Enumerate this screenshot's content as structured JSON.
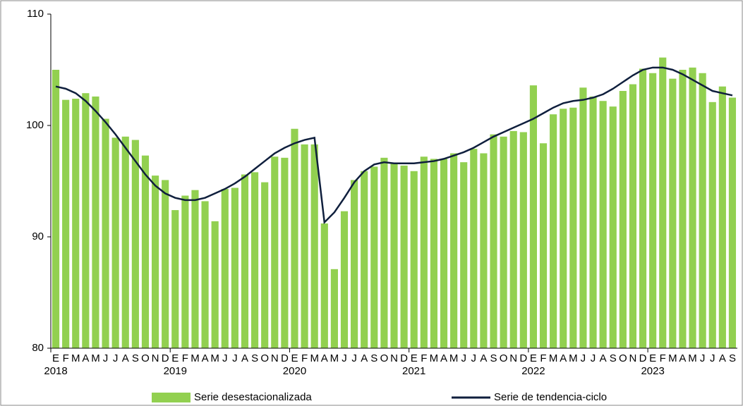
{
  "chart_data": {
    "type": "bar_line",
    "categories": [
      "E",
      "F",
      "M",
      "A",
      "M",
      "J",
      "J",
      "A",
      "S",
      "O",
      "N",
      "D",
      "E",
      "F",
      "M",
      "A",
      "M",
      "J",
      "J",
      "A",
      "S",
      "O",
      "N",
      "D",
      "E",
      "F",
      "M",
      "A",
      "M",
      "J",
      "J",
      "A",
      "S",
      "O",
      "N",
      "D",
      "E",
      "F",
      "M",
      "A",
      "M",
      "J",
      "J",
      "A",
      "S",
      "O",
      "N",
      "D",
      "E",
      "F",
      "M",
      "A",
      "M",
      "J",
      "J",
      "A",
      "S",
      "O",
      "N",
      "D",
      "E",
      "F",
      "M",
      "A",
      "M",
      "J",
      "J",
      "A",
      "S"
    ],
    "years": [
      "2018",
      "2019",
      "2020",
      "2021",
      "2022",
      "2023"
    ],
    "series": [
      {
        "name": "Serie desestacionalizada",
        "kind": "bar",
        "color": "#92d050",
        "values": [
          105.0,
          102.3,
          102.4,
          102.9,
          102.6,
          100.6,
          98.9,
          99.0,
          98.7,
          97.3,
          95.5,
          95.1,
          92.4,
          93.7,
          94.2,
          93.2,
          91.4,
          94.3,
          94.4,
          95.6,
          95.8,
          94.9,
          97.2,
          97.1,
          99.7,
          98.3,
          98.3,
          91.2,
          87.1,
          92.3,
          95.1,
          95.9,
          96.3,
          97.1,
          96.6,
          96.4,
          95.9,
          97.2,
          97.0,
          97.0,
          97.5,
          96.7,
          97.9,
          97.5,
          99.2,
          99.0,
          99.5,
          99.4,
          103.6,
          98.4,
          101.0,
          101.5,
          101.6,
          103.4,
          102.6,
          102.2,
          101.7,
          103.1,
          103.7,
          105.1,
          104.7,
          106.1,
          104.2,
          105.0,
          105.2,
          104.7,
          102.1,
          103.5,
          102.5
        ]
      },
      {
        "name": "Serie de tendencia-ciclo",
        "kind": "line",
        "color": "#0f1f3d",
        "values": [
          103.5,
          103.3,
          102.9,
          102.2,
          101.3,
          100.3,
          99.2,
          98.0,
          96.8,
          95.6,
          94.6,
          93.9,
          93.5,
          93.3,
          93.3,
          93.5,
          93.9,
          94.3,
          94.8,
          95.4,
          96.1,
          96.8,
          97.5,
          98.0,
          98.4,
          98.7,
          98.9,
          91.3,
          92.2,
          93.5,
          94.9,
          95.9,
          96.5,
          96.7,
          96.6,
          96.6,
          96.6,
          96.7,
          96.8,
          97.0,
          97.3,
          97.6,
          98.0,
          98.5,
          99.0,
          99.4,
          99.8,
          100.2,
          100.6,
          101.1,
          101.6,
          102.0,
          102.2,
          102.3,
          102.5,
          102.8,
          103.3,
          103.9,
          104.5,
          105.0,
          105.2,
          105.2,
          105.0,
          104.6,
          104.1,
          103.6,
          103.1,
          102.9,
          102.7
        ]
      }
    ],
    "ylim": [
      80,
      110
    ],
    "yticks": [
      80,
      90,
      100,
      110
    ]
  }
}
